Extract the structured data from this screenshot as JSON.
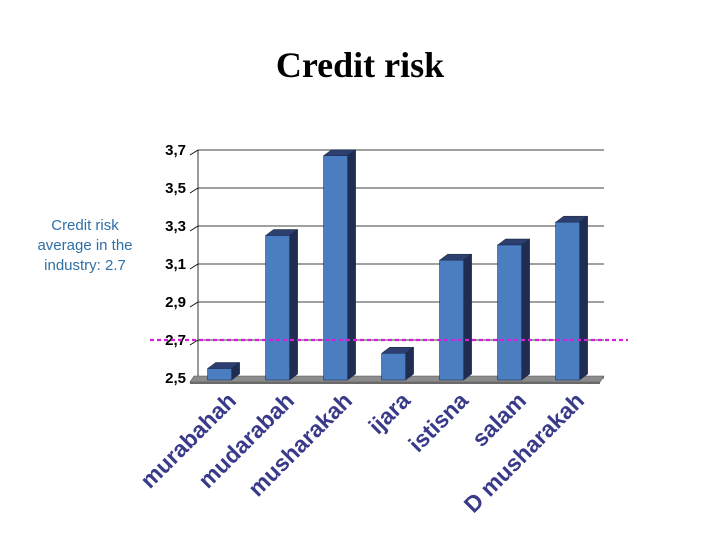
{
  "title": "Credit risk",
  "annotation": {
    "lines": [
      "Credit risk",
      "average in the",
      "industry: 2.7"
    ],
    "value": 2.7,
    "line_color": "#d61fd6"
  },
  "chart_data": {
    "type": "bar",
    "style": "3d",
    "title": "Credit risk",
    "categories": [
      "murabahah",
      "mudarabah",
      "musharakah",
      "ijara",
      "istisna",
      "salam",
      "D musharakah"
    ],
    "values": [
      2.55,
      3.25,
      3.67,
      2.63,
      3.12,
      3.2,
      3.32
    ],
    "ylim": [
      2.5,
      3.7
    ],
    "yticks": [
      "3,7",
      "3,5",
      "3,3",
      "3,1",
      "2,9",
      "2,7",
      "2,5"
    ],
    "reference_line": {
      "value": 2.7
    },
    "grid": true,
    "bar_color": "#4a7ec0"
  }
}
